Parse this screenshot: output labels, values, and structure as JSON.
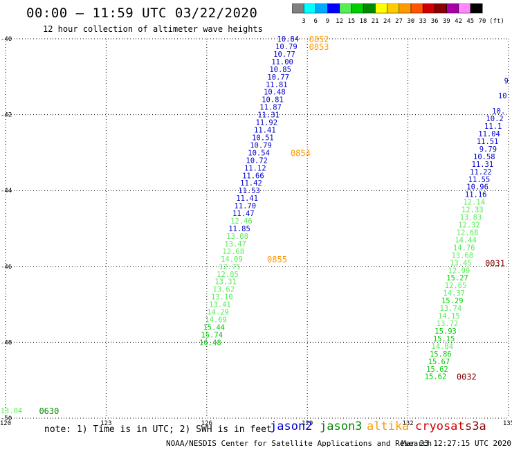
{
  "title": "00:00 – 11:59 UTC 03/22/2020",
  "subtitle": "12 hour collection of altimeter wave heights",
  "note": "note: 1) Time is in UTC; 2) SWH is in feet",
  "footer": "NOAA/NESDIS Center for Satellite Applications and Research",
  "timestamp": "Mar 23 12:27:15 UTC 2020",
  "satellites": [
    {
      "name": "jason2",
      "color": "#0000cc"
    },
    {
      "name": "jason3",
      "color": "#008800"
    },
    {
      "name": "altika",
      "color": "#ff9900"
    },
    {
      "name": "cryosat",
      "color": "#cc0000"
    },
    {
      "name": "s3a",
      "color": "#880000"
    }
  ],
  "colorbar": {
    "unit": "(ft)",
    "labels": [
      "3",
      "6",
      "9",
      "12",
      "15",
      "18",
      "21",
      "24",
      "27",
      "30",
      "33",
      "36",
      "39",
      "42",
      "45",
      "70"
    ],
    "colors": [
      "#808080",
      "#00ffff",
      "#00aaff",
      "#0000ff",
      "#55ee55",
      "#00cc00",
      "#008800",
      "#ffff00",
      "#ffcc00",
      "#ff9900",
      "#ff5500",
      "#cc0000",
      "#880000",
      "#aa00aa",
      "#ff88ff",
      "#000000"
    ]
  },
  "chart_data": {
    "type": "scatter",
    "xlim": [
      120,
      135
    ],
    "ylim": [
      -50,
      -40
    ],
    "xticks": [
      "120",
      "123",
      "126",
      "129",
      "132",
      "135"
    ],
    "yticks": [
      "-40",
      "-42",
      "-44",
      "-46",
      "-48",
      "-50"
    ],
    "grid": true,
    "points": [
      {
        "lon": 128.75,
        "lat": -40.0,
        "v": "10.84",
        "c": "#0000cc"
      },
      {
        "lon": 128.7,
        "lat": -40.2,
        "v": "10.79",
        "c": "#0000cc"
      },
      {
        "lon": 128.64,
        "lat": -40.4,
        "v": "10.77",
        "c": "#0000cc"
      },
      {
        "lon": 128.58,
        "lat": -40.6,
        "v": "11.00",
        "c": "#0000cc"
      },
      {
        "lon": 128.52,
        "lat": -40.8,
        "v": "10.85",
        "c": "#0000cc"
      },
      {
        "lon": 128.46,
        "lat": -41.0,
        "v": "10.77",
        "c": "#0000cc"
      },
      {
        "lon": 128.41,
        "lat": -41.2,
        "v": "11.81",
        "c": "#0000cc"
      },
      {
        "lon": 128.35,
        "lat": -41.4,
        "v": "10.48",
        "c": "#0000cc"
      },
      {
        "lon": 128.29,
        "lat": -41.6,
        "v": "10.81",
        "c": "#0000cc"
      },
      {
        "lon": 128.23,
        "lat": -41.8,
        "v": "11.87",
        "c": "#0000cc"
      },
      {
        "lon": 128.17,
        "lat": -42.0,
        "v": "11.31",
        "c": "#0000cc"
      },
      {
        "lon": 128.11,
        "lat": -42.2,
        "v": "11.92",
        "c": "#0000cc"
      },
      {
        "lon": 128.06,
        "lat": -42.4,
        "v": "11.41",
        "c": "#0000cc"
      },
      {
        "lon": 128.0,
        "lat": -42.6,
        "v": "10.51",
        "c": "#0000cc"
      },
      {
        "lon": 127.94,
        "lat": -42.8,
        "v": "10.79",
        "c": "#0000cc"
      },
      {
        "lon": 127.88,
        "lat": -43.0,
        "v": "10.54",
        "c": "#0000cc"
      },
      {
        "lon": 127.82,
        "lat": -43.2,
        "v": "10.72",
        "c": "#0000cc"
      },
      {
        "lon": 127.77,
        "lat": -43.4,
        "v": "11.12",
        "c": "#0000cc"
      },
      {
        "lon": 127.71,
        "lat": -43.6,
        "v": "11.66",
        "c": "#0000cc"
      },
      {
        "lon": 127.65,
        "lat": -43.8,
        "v": "11.42",
        "c": "#0000cc"
      },
      {
        "lon": 127.59,
        "lat": -44.0,
        "v": "11.53",
        "c": "#0000cc"
      },
      {
        "lon": 127.53,
        "lat": -44.2,
        "v": "11.41",
        "c": "#0000cc"
      },
      {
        "lon": 127.47,
        "lat": -44.4,
        "v": "11.70",
        "c": "#0000cc"
      },
      {
        "lon": 127.42,
        "lat": -44.6,
        "v": "11.47",
        "c": "#0000cc"
      },
      {
        "lon": 127.36,
        "lat": -44.8,
        "v": "12.46",
        "c": "#55ee55"
      },
      {
        "lon": 127.3,
        "lat": -45.0,
        "v": "11.85",
        "c": "#0000cc"
      },
      {
        "lon": 127.24,
        "lat": -45.2,
        "v": "13.08",
        "c": "#55ee55"
      },
      {
        "lon": 127.18,
        "lat": -45.4,
        "v": "13.47",
        "c": "#55ee55"
      },
      {
        "lon": 127.12,
        "lat": -45.6,
        "v": "12.68",
        "c": "#55ee55"
      },
      {
        "lon": 127.07,
        "lat": -45.8,
        "v": "14.09",
        "c": "#55ee55"
      },
      {
        "lon": 127.01,
        "lat": -46.0,
        "v": "12.75",
        "c": "#55ee55"
      },
      {
        "lon": 126.95,
        "lat": -46.2,
        "v": "12.85",
        "c": "#55ee55"
      },
      {
        "lon": 126.89,
        "lat": -46.4,
        "v": "13.31",
        "c": "#55ee55"
      },
      {
        "lon": 126.83,
        "lat": -46.6,
        "v": "13.62",
        "c": "#55ee55"
      },
      {
        "lon": 126.78,
        "lat": -46.8,
        "v": "13.10",
        "c": "#55ee55"
      },
      {
        "lon": 126.72,
        "lat": -47.0,
        "v": "13.41",
        "c": "#55ee55"
      },
      {
        "lon": 126.66,
        "lat": -47.2,
        "v": "14.29",
        "c": "#55ee55"
      },
      {
        "lon": 126.6,
        "lat": -47.4,
        "v": "14.69",
        "c": "#55ee55"
      },
      {
        "lon": 126.54,
        "lat": -47.6,
        "v": "15.44",
        "c": "#00cc00"
      },
      {
        "lon": 126.48,
        "lat": -47.8,
        "v": "15.74",
        "c": "#00cc00"
      },
      {
        "lon": 126.43,
        "lat": -48.0,
        "v": "16.48",
        "c": "#00cc00"
      },
      {
        "lon": 120.5,
        "lat": -49.8,
        "v": "13.04",
        "c": "#55ee55"
      },
      {
        "lon": 135.0,
        "lat": -41.1,
        "v": "9",
        "c": "#0000cc"
      },
      {
        "lon": 134.95,
        "lat": -41.5,
        "v": "10",
        "c": "#0000cc"
      },
      {
        "lon": 134.9,
        "lat": -41.9,
        "v": "10.",
        "c": "#0000cc"
      },
      {
        "lon": 134.85,
        "lat": -42.1,
        "v": "10.2",
        "c": "#0000cc"
      },
      {
        "lon": 134.8,
        "lat": -42.3,
        "v": "11.1",
        "c": "#0000cc"
      },
      {
        "lon": 134.75,
        "lat": -42.5,
        "v": "11.04",
        "c": "#0000cc"
      },
      {
        "lon": 134.7,
        "lat": -42.7,
        "v": "11.51",
        "c": "#0000cc"
      },
      {
        "lon": 134.65,
        "lat": -42.9,
        "v": "9.79",
        "c": "#0000cc"
      },
      {
        "lon": 134.6,
        "lat": -43.1,
        "v": "10.58",
        "c": "#0000cc"
      },
      {
        "lon": 134.55,
        "lat": -43.3,
        "v": "11.31",
        "c": "#0000cc"
      },
      {
        "lon": 134.5,
        "lat": -43.5,
        "v": "11.22",
        "c": "#0000cc"
      },
      {
        "lon": 134.45,
        "lat": -43.7,
        "v": "11.55",
        "c": "#0000cc"
      },
      {
        "lon": 134.4,
        "lat": -43.9,
        "v": "10.96",
        "c": "#0000cc"
      },
      {
        "lon": 134.35,
        "lat": -44.1,
        "v": "11.16",
        "c": "#0000cc"
      },
      {
        "lon": 134.3,
        "lat": -44.3,
        "v": "12.14",
        "c": "#55ee55"
      },
      {
        "lon": 134.25,
        "lat": -44.5,
        "v": "12.33",
        "c": "#55ee55"
      },
      {
        "lon": 134.2,
        "lat": -44.7,
        "v": "13.83",
        "c": "#55ee55"
      },
      {
        "lon": 134.15,
        "lat": -44.9,
        "v": "12.32",
        "c": "#55ee55"
      },
      {
        "lon": 134.1,
        "lat": -45.1,
        "v": "12.68",
        "c": "#55ee55"
      },
      {
        "lon": 134.05,
        "lat": -45.3,
        "v": "14.44",
        "c": "#55ee55"
      },
      {
        "lon": 134.0,
        "lat": -45.5,
        "v": "14.76",
        "c": "#55ee55"
      },
      {
        "lon": 133.95,
        "lat": -45.7,
        "v": "13.68",
        "c": "#55ee55"
      },
      {
        "lon": 133.9,
        "lat": -45.9,
        "v": "13.45",
        "c": "#55ee55"
      },
      {
        "lon": 133.85,
        "lat": -46.1,
        "v": "12.99",
        "c": "#55ee55"
      },
      {
        "lon": 133.8,
        "lat": -46.3,
        "v": "15.27",
        "c": "#00cc00"
      },
      {
        "lon": 133.75,
        "lat": -46.5,
        "v": "12.65",
        "c": "#55ee55"
      },
      {
        "lon": 133.7,
        "lat": -46.7,
        "v": "14.37",
        "c": "#55ee55"
      },
      {
        "lon": 133.65,
        "lat": -46.9,
        "v": "15.29",
        "c": "#00cc00"
      },
      {
        "lon": 133.6,
        "lat": -47.1,
        "v": "13.74",
        "c": "#55ee55"
      },
      {
        "lon": 133.55,
        "lat": -47.3,
        "v": "14.15",
        "c": "#55ee55"
      },
      {
        "lon": 133.5,
        "lat": -47.5,
        "v": "13.72",
        "c": "#55ee55"
      },
      {
        "lon": 133.45,
        "lat": -47.7,
        "v": "15.93",
        "c": "#00cc00"
      },
      {
        "lon": 133.4,
        "lat": -47.9,
        "v": "15.15",
        "c": "#00cc00"
      },
      {
        "lon": 133.35,
        "lat": -48.1,
        "v": "14.84",
        "c": "#55ee55"
      },
      {
        "lon": 133.3,
        "lat": -48.3,
        "v": "15.86",
        "c": "#00cc00"
      },
      {
        "lon": 133.25,
        "lat": -48.5,
        "v": "15.67",
        "c": "#00cc00"
      },
      {
        "lon": 133.2,
        "lat": -48.7,
        "v": "15.62",
        "c": "#00cc00"
      },
      {
        "lon": 133.15,
        "lat": -48.9,
        "v": "15.62",
        "c": "#00cc00"
      }
    ],
    "times": [
      {
        "lon": 129.05,
        "lat": -40.0,
        "t": "0852",
        "c": "#ff9900"
      },
      {
        "lon": 129.05,
        "lat": -40.2,
        "t": "0853",
        "c": "#ff9900"
      },
      {
        "lon": 128.5,
        "lat": -43.0,
        "t": "0854",
        "c": "#ff9900"
      },
      {
        "lon": 127.8,
        "lat": -45.8,
        "t": "0855",
        "c": "#ff9900"
      },
      {
        "lon": 121.0,
        "lat": -49.8,
        "t": "0630",
        "c": "#008800"
      },
      {
        "lon": 134.3,
        "lat": -45.9,
        "t": "0031",
        "c": "#880000"
      },
      {
        "lon": 133.45,
        "lat": -48.9,
        "t": "0032",
        "c": "#880000"
      }
    ]
  }
}
